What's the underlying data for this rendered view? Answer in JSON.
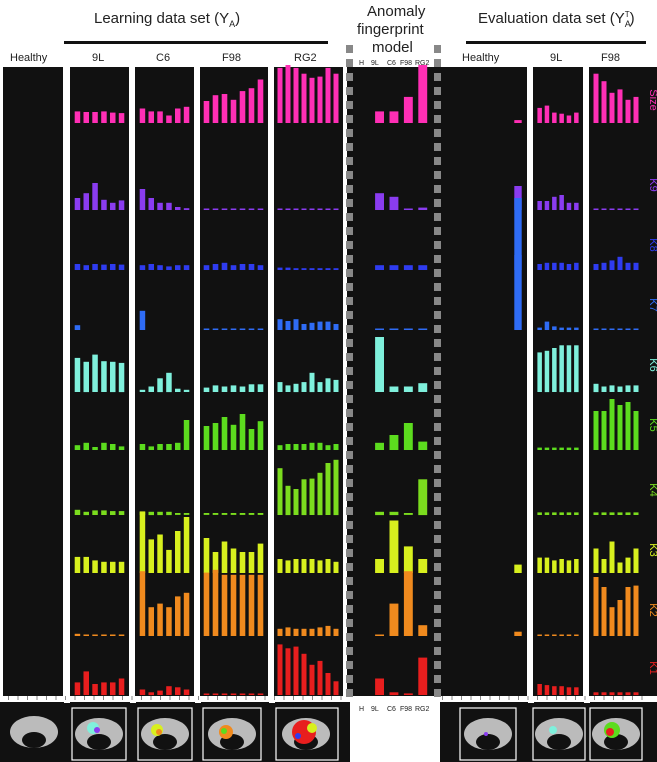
{
  "headers": {
    "learning": "Learning data set (Y",
    "learning_sub": "A",
    "learning_close": ")",
    "anomaly_line1": "Anomaly",
    "anomaly_line2": "fingerprint",
    "anomaly_line3": "model",
    "evaluation": "Evaluation data set (Y",
    "evaluation_sub": "A",
    "evaluation_sup": "T",
    "evaluation_close": ")"
  },
  "column_labels": {
    "healthy": "Healthy",
    "l9": "9L",
    "c6": "C6",
    "f98": "F98",
    "rg2": "RG2",
    "model": [
      "H",
      "9L",
      "C6",
      "F98",
      "RG2"
    ],
    "eval_healthy": "Healthy",
    "eval_9l": "9L",
    "eval_f98": "F98"
  },
  "chart_data": {
    "type": "bar",
    "rows": [
      "Size",
      "K9",
      "K8",
      "K7",
      "K6",
      "K5",
      "K4",
      "K3",
      "K2",
      "K1"
    ],
    "row_colors": {
      "Size": "#ff2fb5",
      "K9": "#8a3cf0",
      "K8": "#2f3cf0",
      "K7": "#2f6cf5",
      "K6": "#7ff0dc",
      "K5": "#5cdc1e",
      "K4": "#7bdc1e",
      "K3": "#d8f01e",
      "K2": "#f08a1e",
      "K1": "#e81e1e"
    },
    "groups": [
      {
        "name": "Healthy",
        "values": {
          "Size": [
            0,
            0,
            0,
            0,
            0,
            0,
            0
          ],
          "K9": [
            0,
            0,
            0,
            0,
            0,
            0,
            0
          ],
          "K8": [
            0,
            0,
            0,
            0,
            0,
            0,
            0
          ],
          "K7": [
            0,
            0,
            0,
            0,
            0,
            0,
            0
          ],
          "K6": [
            0,
            0,
            0,
            0,
            0,
            0,
            0
          ],
          "K5": [
            0,
            0,
            0,
            0,
            0,
            0,
            0
          ],
          "K4": [
            0,
            0,
            0,
            0,
            0,
            0,
            0
          ],
          "K3": [
            0,
            0,
            0,
            0,
            0,
            0,
            0
          ],
          "K2": [
            0,
            0,
            0,
            0,
            0,
            0,
            0
          ],
          "K1": [
            0,
            0,
            0,
            0,
            0,
            0,
            0
          ]
        }
      },
      {
        "name": "9L",
        "values": {
          "Size": [
            0.2,
            0.19,
            0.19,
            0.2,
            0.18,
            0.17
          ],
          "K9": [
            0.2,
            0.28,
            0.45,
            0.17,
            0.12,
            0.16
          ],
          "K8": [
            0.1,
            0.08,
            0.1,
            0.09,
            0.1,
            0.09
          ],
          "K7": [
            0.08,
            0,
            0,
            0,
            0,
            0
          ],
          "K6": [
            0.62,
            0.55,
            0.68,
            0.56,
            0.55,
            0.53
          ],
          "K5": [
            0.08,
            0.12,
            0.05,
            0.12,
            0.1,
            0.06
          ],
          "K4": [
            0.08,
            0.05,
            0.07,
            0.07,
            0.06,
            0.06
          ],
          "K3": [
            0.23,
            0.23,
            0.18,
            0.16,
            0.16,
            0.16
          ],
          "K2": [
            0.03,
            0.02,
            0.02,
            0.02,
            0.02,
            0.02
          ],
          "K1": [
            0.23,
            0.43,
            0.2,
            0.23,
            0.23,
            0.3
          ]
        }
      },
      {
        "name": "C6",
        "values": {
          "Size": [
            0.25,
            0.2,
            0.2,
            0.13,
            0.25,
            0.28
          ],
          "K9": [
            0.35,
            0.2,
            0.12,
            0.12,
            0.05,
            0.03
          ],
          "K8": [
            0.08,
            0.1,
            0.08,
            0.06,
            0.08,
            0.08
          ],
          "K7": [
            0.32,
            0,
            0,
            0,
            0,
            0
          ],
          "K6": [
            0.04,
            0.1,
            0.25,
            0.35,
            0.06,
            0.04
          ],
          "K5": [
            0.1,
            0.06,
            0.1,
            0.1,
            0.12,
            0.5
          ],
          "K4": [
            0.05,
            0.05,
            0.05,
            0.05,
            0.03,
            0.03
          ],
          "K3": [
            0.88,
            0.48,
            0.55,
            0.33,
            0.6,
            0.8
          ],
          "K2": [
            0.9,
            0.4,
            0.45,
            0.4,
            0.55,
            0.6
          ],
          "K1": [
            0.1,
            0.05,
            0.08,
            0.16,
            0.14,
            0.1
          ]
        }
      },
      {
        "name": "F98",
        "values": {
          "Size": [
            0.38,
            0.48,
            0.5,
            0.4,
            0.55,
            0.6,
            0.75
          ],
          "K9": [
            0.02,
            0.02,
            0.02,
            0.02,
            0.02,
            0.02,
            0.02
          ],
          "K8": [
            0.08,
            0.1,
            0.12,
            0.08,
            0.1,
            0.1,
            0.08
          ],
          "K7": [
            0.02,
            0.02,
            0.02,
            0.02,
            0.02,
            0.02,
            0.02
          ],
          "K6": [
            0.08,
            0.12,
            0.1,
            0.12,
            0.1,
            0.14,
            0.14
          ],
          "K5": [
            0.4,
            0.45,
            0.55,
            0.42,
            0.6,
            0.35,
            0.48
          ],
          "K4": [
            0.03,
            0.03,
            0.03,
            0.03,
            0.03,
            0.03,
            0.03
          ],
          "K3": [
            0.5,
            0.3,
            0.45,
            0.35,
            0.3,
            0.3,
            0.42
          ],
          "K2": [
            0.88,
            0.92,
            0.85,
            0.85,
            0.85,
            0.85,
            0.85
          ],
          "K1": [
            0.02,
            0.02,
            0.02,
            0.02,
            0.02,
            0.02,
            0.02
          ]
        }
      },
      {
        "name": "RG2",
        "values": {
          "Size": [
            0.95,
            1.0,
            0.95,
            0.85,
            0.78,
            0.8,
            0.95,
            0.85
          ],
          "K9": [
            0.02,
            0.02,
            0.02,
            0.02,
            0.02,
            0.02,
            0.02,
            0.02
          ],
          "K8": [
            0.04,
            0.04,
            0.03,
            0.03,
            0.03,
            0.03,
            0.03,
            0.03
          ],
          "K7": [
            0.18,
            0.15,
            0.18,
            0.1,
            0.12,
            0.14,
            0.14,
            0.1
          ],
          "K6": [
            0.18,
            0.12,
            0.15,
            0.18,
            0.35,
            0.18,
            0.25,
            0.22
          ],
          "K5": [
            0.08,
            0.1,
            0.1,
            0.1,
            0.12,
            0.12,
            0.08,
            0.1
          ],
          "K4": [
            0.72,
            0.45,
            0.4,
            0.55,
            0.56,
            0.65,
            0.8,
            0.85
          ],
          "K3": [
            0.2,
            0.18,
            0.2,
            0.2,
            0.2,
            0.18,
            0.2,
            0.16
          ],
          "K2": [
            0.1,
            0.12,
            0.1,
            0.1,
            0.1,
            0.12,
            0.14,
            0.1
          ],
          "K1": [
            0.92,
            0.85,
            0.88,
            0.75,
            0.55,
            0.62,
            0.4,
            0.25
          ]
        }
      },
      {
        "name": "Model",
        "values": {
          "Size": [
            0,
            0.2,
            0.2,
            0.45,
            1.0
          ],
          "K9": [
            0,
            0.28,
            0.22,
            0.02,
            0.04
          ],
          "K8": [
            0,
            0.08,
            0.08,
            0.08,
            0.08
          ],
          "K7": [
            0,
            0.02,
            0.02,
            0.02,
            0.02
          ],
          "K6": [
            0,
            1.0,
            0.1,
            0.1,
            0.16
          ],
          "K5": [
            0,
            0.12,
            0.25,
            0.45,
            0.14
          ],
          "K4": [
            0,
            0.05,
            0.05,
            0.03,
            0.55
          ],
          "K3": [
            0,
            0.2,
            0.75,
            0.38,
            0.2
          ],
          "K2": [
            0,
            0.02,
            0.45,
            0.9,
            0.15
          ],
          "K1": [
            0,
            0.3,
            0.05,
            0.03,
            0.68
          ]
        }
      },
      {
        "name": "Healthy (eval)",
        "values": {
          "Size": [
            0,
            0,
            0,
            0,
            0,
            0,
            0.05
          ],
          "K9": [
            0,
            0,
            0,
            0,
            0,
            0,
            0.4
          ],
          "K8": [
            0,
            0,
            0,
            0,
            0,
            0,
            0.25
          ],
          "K7": [
            0,
            0,
            0,
            0,
            0,
            0,
            2.2
          ],
          "K6": [
            0,
            0,
            0,
            0,
            0,
            0,
            0
          ],
          "K5": [
            0,
            0,
            0,
            0,
            0,
            0,
            0
          ],
          "K4": [
            0,
            0,
            0,
            0,
            0,
            0,
            0
          ],
          "K3": [
            0,
            0,
            0,
            0,
            0,
            0,
            0.12
          ],
          "K2": [
            0,
            0,
            0,
            0,
            0,
            0,
            0.06
          ],
          "K1": [
            0,
            0,
            0,
            0,
            0,
            0,
            0
          ]
        }
      },
      {
        "name": "9L (eval)",
        "values": {
          "Size": [
            0.26,
            0.3,
            0.18,
            0.16,
            0.13,
            0.18
          ],
          "K9": [
            0.15,
            0.15,
            0.22,
            0.25,
            0.12,
            0.12
          ],
          "K8": [
            0.1,
            0.12,
            0.12,
            0.12,
            0.1,
            0.12
          ],
          "K7": [
            0.04,
            0.14,
            0.06,
            0.04,
            0.04,
            0.04
          ],
          "K6": [
            0.72,
            0.75,
            0.8,
            0.85,
            0.85,
            0.85
          ],
          "K5": [
            0.04,
            0.04,
            0.04,
            0.04,
            0.04,
            0.04
          ],
          "K4": [
            0.04,
            0.04,
            0.04,
            0.04,
            0.04,
            0.04
          ],
          "K3": [
            0.22,
            0.22,
            0.18,
            0.2,
            0.18,
            0.2
          ],
          "K2": [
            0.02,
            0.02,
            0.02,
            0.02,
            0.02,
            0.02
          ],
          "K1": [
            0.2,
            0.18,
            0.16,
            0.16,
            0.14,
            0.14
          ]
        }
      },
      {
        "name": "F98 (eval)",
        "values": {
          "Size": [
            0.85,
            0.72,
            0.52,
            0.58,
            0.4,
            0.45
          ],
          "K9": [
            0.02,
            0.02,
            0.02,
            0.02,
            0.02,
            0.02
          ],
          "K8": [
            0.1,
            0.12,
            0.16,
            0.22,
            0.12,
            0.12
          ],
          "K7": [
            0.02,
            0.02,
            0.02,
            0.02,
            0.02,
            0.02
          ],
          "K6": [
            0.15,
            0.1,
            0.12,
            0.1,
            0.12,
            0.12
          ],
          "K5": [
            0.65,
            0.65,
            0.85,
            0.75,
            0.8,
            0.65
          ],
          "K4": [
            0.04,
            0.04,
            0.04,
            0.04,
            0.04,
            0.04
          ],
          "K3": [
            0.35,
            0.2,
            0.45,
            0.15,
            0.22,
            0.35
          ],
          "K2": [
            0.82,
            0.68,
            0.4,
            0.5,
            0.68,
            0.7
          ],
          "K1": [
            0.05,
            0.05,
            0.05,
            0.05,
            0.05,
            0.05
          ]
        }
      }
    ]
  }
}
